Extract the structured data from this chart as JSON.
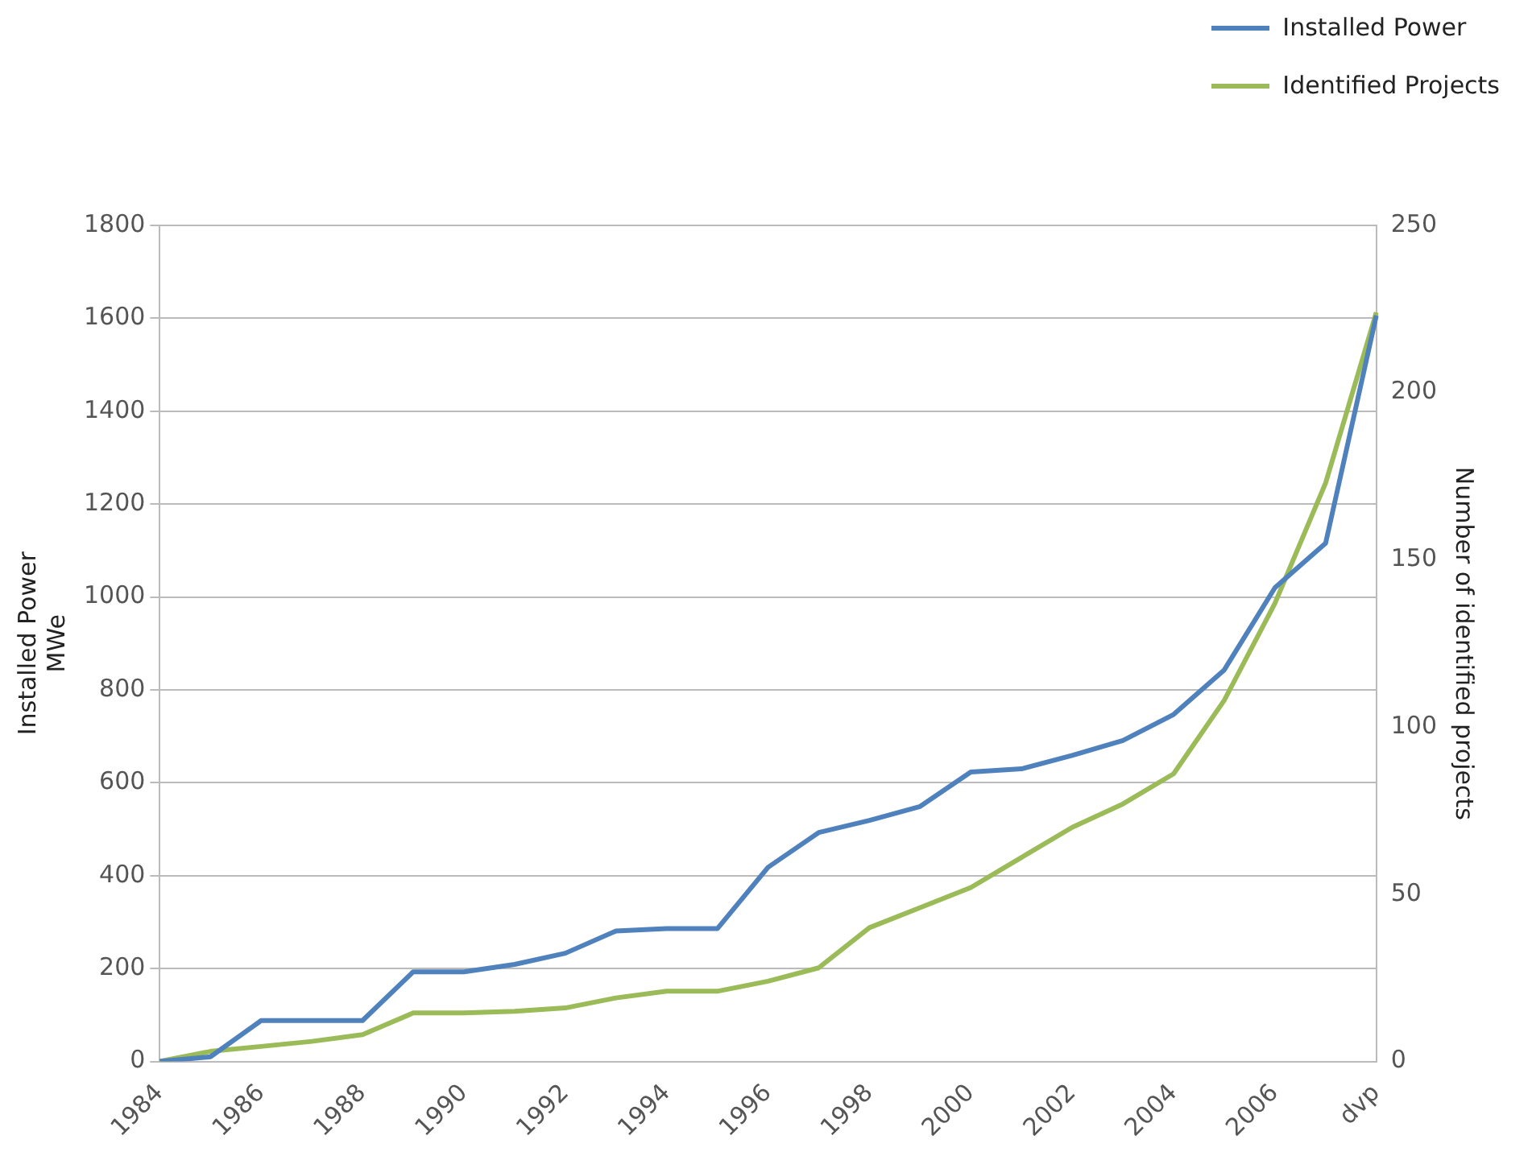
{
  "chart_data": {
    "type": "line",
    "ylabel": "Installed Power\nMWe",
    "y2label": "Number of identified projects",
    "categories": [
      "1984",
      null,
      "1986",
      null,
      "1988",
      null,
      "1990",
      null,
      "1992",
      null,
      "1994",
      null,
      "1996",
      null,
      "1998",
      null,
      "2000",
      null,
      "2002",
      null,
      "2004",
      null,
      "2006",
      null,
      "dvp"
    ],
    "series": [
      {
        "name": "Installed Power",
        "color": "#4f81bd",
        "values": [
          0,
          10,
          88,
          88,
          88,
          193,
          193,
          209,
          233,
          281,
          286,
          286,
          418,
          493,
          519,
          549,
          623,
          630,
          659,
          691,
          747,
          843,
          1020,
          1116,
          1606
        ]
      },
      {
        "name": "Identified Projects",
        "color": "#9bbb59",
        "axis": "y2",
        "values": [
          0,
          3,
          4.5,
          6,
          8,
          14.5,
          14.5,
          15,
          16,
          19,
          21,
          21,
          24,
          28,
          40,
          46,
          52,
          61,
          70,
          77,
          86,
          108,
          137,
          173,
          224
        ]
      }
    ],
    "ylim": [
      0,
      1800
    ],
    "yticks": [
      0,
      200,
      400,
      600,
      800,
      1000,
      1200,
      1400,
      1600,
      1800
    ],
    "y2lim": [
      0,
      250
    ],
    "y2ticks": [
      0,
      50,
      100,
      150,
      200,
      250
    ],
    "grid": "y",
    "legend": "top right",
    "marker": "none",
    "line_style": "solid"
  }
}
